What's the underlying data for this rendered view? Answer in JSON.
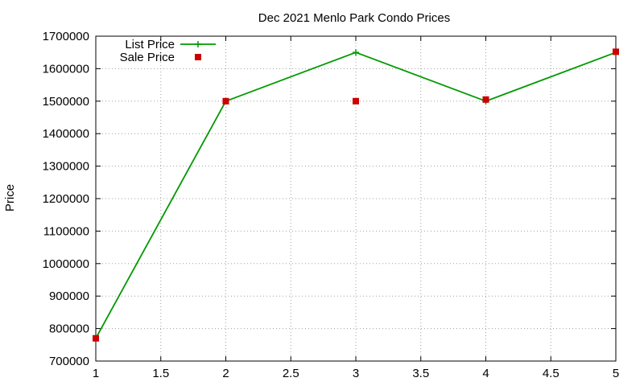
{
  "chart_data": {
    "type": "line",
    "title": "Dec 2021 Menlo Park Condo Prices",
    "xlabel": "",
    "ylabel": "Price",
    "xlim": [
      1,
      5
    ],
    "ylim": [
      700000,
      1700000
    ],
    "x_ticks": [
      "1",
      "1.5",
      "2",
      "2.5",
      "3",
      "3.5",
      "4",
      "4.5",
      "5"
    ],
    "y_ticks": [
      "700000",
      "800000",
      "900000",
      "1000000",
      "1100000",
      "1200000",
      "1300000",
      "1400000",
      "1500000",
      "1600000",
      "1700000"
    ],
    "grid": true,
    "legend_position": "top-left",
    "series": [
      {
        "name": "List Price",
        "style": "lines+points",
        "marker": "plus",
        "color": "#009900",
        "points": [
          {
            "x": 1,
            "y": 770000
          },
          {
            "x": 2,
            "y": 1500000
          },
          {
            "x": 3,
            "y": 1650000
          },
          {
            "x": 4,
            "y": 1500000
          },
          {
            "x": 5,
            "y": 1650000
          }
        ]
      },
      {
        "name": "Sale Price",
        "style": "points",
        "marker": "square",
        "color": "#cc0000",
        "points": [
          {
            "x": 1,
            "y": 770000
          },
          {
            "x": 2,
            "y": 1500000
          },
          {
            "x": 3,
            "y": 1500000
          },
          {
            "x": 4,
            "y": 1505000
          },
          {
            "x": 5,
            "y": 1652000
          }
        ]
      }
    ]
  }
}
